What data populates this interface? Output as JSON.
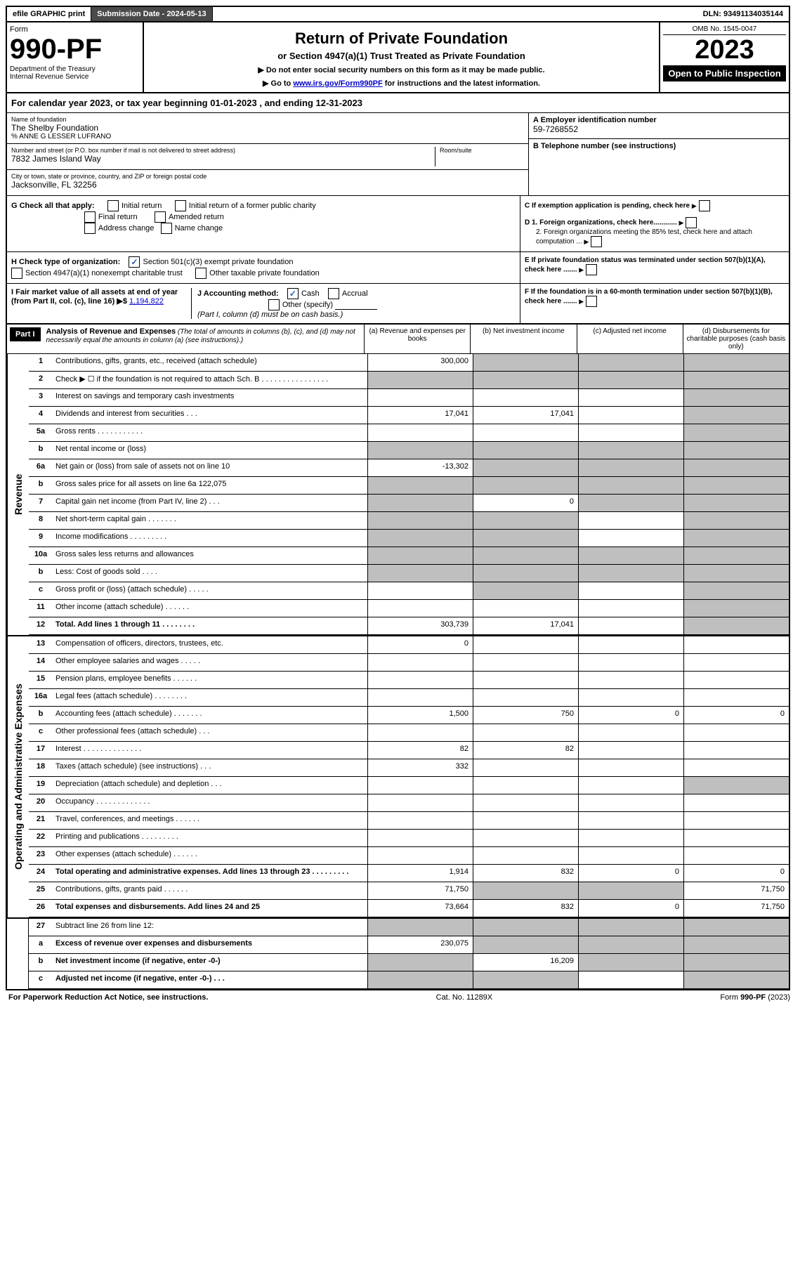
{
  "top_bar": {
    "efile": "efile GRAPHIC print",
    "submission_label": "Submission Date - 2024-05-13",
    "dln": "DLN: 93491134035144"
  },
  "header": {
    "form_word": "Form",
    "form_number": "990-PF",
    "dept": "Department of the Treasury",
    "irs": "Internal Revenue Service",
    "title": "Return of Private Foundation",
    "subtitle": "or Section 4947(a)(1) Trust Treated as Private Foundation",
    "note1": "▶ Do not enter social security numbers on this form as it may be made public.",
    "note2_prefix": "▶ Go to ",
    "note2_link": "www.irs.gov/Form990PF",
    "note2_suffix": " for instructions and the latest information.",
    "omb": "OMB No. 1545-0047",
    "year": "2023",
    "open": "Open to Public Inspection"
  },
  "cal_year": "For calendar year 2023, or tax year beginning 01-01-2023                           , and ending 12-31-2023",
  "info": {
    "name_label": "Name of foundation",
    "name": "The Shelby Foundation",
    "care_of": "% ANNE G LESSER LUFRANO",
    "addr_label": "Number and street (or P.O. box number if mail is not delivered to street address)",
    "addr": "7832 James Island Way",
    "room_label": "Room/suite",
    "city_label": "City or town, state or province, country, and ZIP or foreign postal code",
    "city": "Jacksonville, FL  32256",
    "ein_label": "A Employer identification number",
    "ein": "59-7268552",
    "tel_label": "B Telephone number (see instructions)",
    "c_label": "C If exemption application is pending, check here",
    "d1": "D 1. Foreign organizations, check here............",
    "d2": "2. Foreign organizations meeting the 85% test, check here and attach computation ...",
    "e_label": "E  If private foundation status was terminated under section 507(b)(1)(A), check here .......",
    "f_label": "F  If the foundation is in a 60-month termination under section 507(b)(1)(B), check here ......."
  },
  "checks": {
    "g_label": "G Check all that apply:",
    "initial": "Initial return",
    "initial_former": "Initial return of a former public charity",
    "final": "Final return",
    "amended": "Amended return",
    "addr_change": "Address change",
    "name_change": "Name change",
    "h_label": "H Check type of organization:",
    "h_501c3": "Section 501(c)(3) exempt private foundation",
    "h_4947": "Section 4947(a)(1) nonexempt charitable trust",
    "h_other": "Other taxable private foundation",
    "i_label": "I Fair market value of all assets at end of year (from Part II, col. (c), line 16) ▶$ ",
    "i_value": "1,194,822",
    "j_label": "J Accounting method:",
    "j_cash": "Cash",
    "j_accrual": "Accrual",
    "j_other": "Other (specify)",
    "j_note": "(Part I, column (d) must be on cash basis.)"
  },
  "part1": {
    "title": "Part I",
    "heading": "Analysis of Revenue and Expenses",
    "heading_note": " (The total of amounts in columns (b), (c), and (d) may not necessarily equal the amounts in column (a) (see instructions).)",
    "col_a": "(a)    Revenue and expenses per books",
    "col_b": "(b)    Net investment income",
    "col_c": "(c)   Adjusted net income",
    "col_d": "(d)   Disbursements for charitable purposes (cash basis only)"
  },
  "revenue_label": "Revenue",
  "expense_label": "Operating and Administrative Expenses",
  "rows": [
    {
      "n": "1",
      "label": "Contributions, gifts, grants, etc., received (attach schedule)",
      "a": "300,000",
      "b": "",
      "c": "",
      "d": "",
      "greyB": true,
      "greyC": true,
      "greyD": true
    },
    {
      "n": "2",
      "label": "Check ▶ ☐ if the foundation is not required to attach Sch. B   .  .  .  .  .  .  .  .  .  .  .  .  .  .  .  .",
      "a": "",
      "b": "",
      "c": "",
      "d": "",
      "greyA": true,
      "greyB": true,
      "greyC": true,
      "greyD": true
    },
    {
      "n": "3",
      "label": "Interest on savings and temporary cash investments",
      "a": "",
      "b": "",
      "c": "",
      "d": "",
      "greyD": true
    },
    {
      "n": "4",
      "label": "Dividends and interest from securities    .   .   .",
      "a": "17,041",
      "b": "17,041",
      "c": "",
      "d": "",
      "greyD": true
    },
    {
      "n": "5a",
      "label": "Gross rents    .   .   .   .   .   .   .   .   .   .   .",
      "a": "",
      "b": "",
      "c": "",
      "d": "",
      "greyD": true
    },
    {
      "n": "b",
      "label": "Net rental income or (loss) ",
      "a": "",
      "b": "",
      "c": "",
      "d": "",
      "greyA": true,
      "greyB": true,
      "greyC": true,
      "greyD": true
    },
    {
      "n": "6a",
      "label": "Net gain or (loss) from sale of assets not on line 10",
      "a": "-13,302",
      "b": "",
      "c": "",
      "d": "",
      "greyB": true,
      "greyC": true,
      "greyD": true
    },
    {
      "n": "b",
      "label": "Gross sales price for all assets on line 6a                  122,075",
      "a": "",
      "b": "",
      "c": "",
      "d": "",
      "greyA": true,
      "greyB": true,
      "greyC": true,
      "greyD": true
    },
    {
      "n": "7",
      "label": "Capital gain net income (from Part IV, line 2)   .   .   .",
      "a": "",
      "b": "0",
      "c": "",
      "d": "",
      "greyA": true,
      "greyC": true,
      "greyD": true
    },
    {
      "n": "8",
      "label": "Net short-term capital gain   .   .   .   .   .   .   .",
      "a": "",
      "b": "",
      "c": "",
      "d": "",
      "greyA": true,
      "greyB": true,
      "greyD": true
    },
    {
      "n": "9",
      "label": "Income modifications  .   .   .   .   .   .   .   .   .",
      "a": "",
      "b": "",
      "c": "",
      "d": "",
      "greyA": true,
      "greyB": true,
      "greyD": true
    },
    {
      "n": "10a",
      "label": "Gross sales less returns and allowances",
      "a": "",
      "b": "",
      "c": "",
      "d": "",
      "greyA": true,
      "greyB": true,
      "greyC": true,
      "greyD": true
    },
    {
      "n": "b",
      "label": "Less: Cost of goods sold     .   .   .   .",
      "a": "",
      "b": "",
      "c": "",
      "d": "",
      "greyA": true,
      "greyB": true,
      "greyC": true,
      "greyD": true
    },
    {
      "n": "c",
      "label": "Gross profit or (loss) (attach schedule)     .   .   .   .   .",
      "a": "",
      "b": "",
      "c": "",
      "d": "",
      "greyB": true,
      "greyD": true
    },
    {
      "n": "11",
      "label": "Other income (attach schedule)    .   .   .   .   .   .",
      "a": "",
      "b": "",
      "c": "",
      "d": "",
      "greyD": true
    },
    {
      "n": "12",
      "label": "Total. Add lines 1 through 11   .   .   .   .   .   .   .   .",
      "a": "303,739",
      "b": "17,041",
      "c": "",
      "d": "",
      "bold": true,
      "greyD": true
    }
  ],
  "exp_rows": [
    {
      "n": "13",
      "label": "Compensation of officers, directors, trustees, etc.",
      "a": "0",
      "b": "",
      "c": "",
      "d": ""
    },
    {
      "n": "14",
      "label": "Other employee salaries and wages    .   .   .   .   .",
      "a": "",
      "b": "",
      "c": "",
      "d": ""
    },
    {
      "n": "15",
      "label": "Pension plans, employee benefits   .   .   .   .   .   .",
      "a": "",
      "b": "",
      "c": "",
      "d": ""
    },
    {
      "n": "16a",
      "label": "Legal fees (attach schedule)  .   .   .   .   .   .   .   .",
      "a": "",
      "b": "",
      "c": "",
      "d": ""
    },
    {
      "n": "b",
      "label": "Accounting fees (attach schedule)  .   .   .   .   .   .   .",
      "a": "1,500",
      "b": "750",
      "c": "0",
      "d": "0"
    },
    {
      "n": "c",
      "label": "Other professional fees (attach schedule)    .   .   .",
      "a": "",
      "b": "",
      "c": "",
      "d": ""
    },
    {
      "n": "17",
      "label": "Interest  .   .   .   .   .   .   .   .   .   .   .   .   .   .",
      "a": "82",
      "b": "82",
      "c": "",
      "d": ""
    },
    {
      "n": "18",
      "label": "Taxes (attach schedule) (see instructions)     .   .   .",
      "a": "332",
      "b": "",
      "c": "",
      "d": ""
    },
    {
      "n": "19",
      "label": "Depreciation (attach schedule) and depletion    .   .   .",
      "a": "",
      "b": "",
      "c": "",
      "d": "",
      "greyD": true
    },
    {
      "n": "20",
      "label": "Occupancy .   .   .   .   .   .   .   .   .   .   .   .   .",
      "a": "",
      "b": "",
      "c": "",
      "d": ""
    },
    {
      "n": "21",
      "label": "Travel, conferences, and meetings  .   .   .   .   .   .",
      "a": "",
      "b": "",
      "c": "",
      "d": ""
    },
    {
      "n": "22",
      "label": "Printing and publications  .   .   .   .   .   .   .   .   .",
      "a": "",
      "b": "",
      "c": "",
      "d": ""
    },
    {
      "n": "23",
      "label": "Other expenses (attach schedule)  .   .   .   .   .   .",
      "a": "",
      "b": "",
      "c": "",
      "d": ""
    },
    {
      "n": "24",
      "label": "Total operating and administrative expenses. Add lines 13 through 23   .   .   .   .   .   .   .   .   .",
      "a": "1,914",
      "b": "832",
      "c": "0",
      "d": "0",
      "bold": true
    },
    {
      "n": "25",
      "label": "Contributions, gifts, grants paid     .   .   .   .   .   .",
      "a": "71,750",
      "b": "",
      "c": "",
      "d": "71,750",
      "greyB": true,
      "greyC": true
    },
    {
      "n": "26",
      "label": "Total expenses and disbursements. Add lines 24 and 25",
      "a": "73,664",
      "b": "832",
      "c": "0",
      "d": "71,750",
      "bold": true
    }
  ],
  "bottom_rows": [
    {
      "n": "27",
      "label": "Subtract line 26 from line 12:",
      "a": "",
      "b": "",
      "c": "",
      "d": "",
      "greyA": true,
      "greyB": true,
      "greyC": true,
      "greyD": true
    },
    {
      "n": "a",
      "label": "Excess of revenue over expenses and disbursements",
      "a": "230,075",
      "b": "",
      "c": "",
      "d": "",
      "bold": true,
      "greyB": true,
      "greyC": true,
      "greyD": true
    },
    {
      "n": "b",
      "label": "Net investment income (if negative, enter -0-)",
      "a": "",
      "b": "16,209",
      "c": "",
      "d": "",
      "bold": true,
      "greyA": true,
      "greyC": true,
      "greyD": true
    },
    {
      "n": "c",
      "label": "Adjusted net income (if negative, enter -0-)   .   .   .",
      "a": "",
      "b": "",
      "c": "",
      "d": "",
      "bold": true,
      "greyA": true,
      "greyB": true,
      "greyD": true
    }
  ],
  "footer": {
    "left": "For Paperwork Reduction Act Notice, see instructions.",
    "center": "Cat. No. 11289X",
    "right": "Form 990-PF (2023)"
  }
}
